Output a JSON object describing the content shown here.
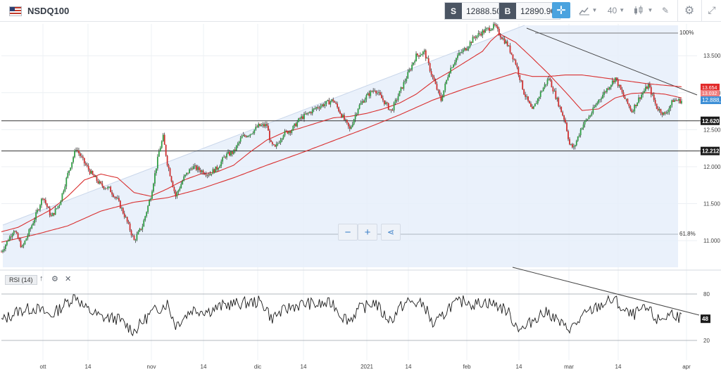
{
  "header": {
    "symbol": "NSDQ100",
    "sell_tag": "S",
    "sell_price": "12888.50",
    "buy_tag": "B",
    "buy_price": "12890.90",
    "interval_value": "40",
    "icons": [
      "flag-us-icon",
      "crosshair-icon",
      "line-chart-icon",
      "candles-icon",
      "draw-icon",
      "gear-icon",
      "expand-icon"
    ]
  },
  "controls": {
    "zoom_out": "−",
    "zoom_in": "+",
    "share_icon": "share-icon"
  },
  "rsi_panel": {
    "label": "RSI (14)",
    "current_value_tag": "48",
    "levels": [
      80,
      20
    ]
  },
  "chart_data": [
    {
      "type": "line",
      "subtype": "candlestick",
      "x_labels": [
        "ott",
        "14",
        "nov",
        "14",
        "dic",
        "14",
        "2021",
        "14",
        "feb",
        "14",
        "mar",
        "14",
        "apr"
      ],
      "y_ticks": [
        11.0,
        11.5,
        12.0,
        12.5,
        13.0,
        13.5
      ],
      "y_tick_labels": [
        "11.000",
        "11.500",
        "12.000",
        "12.500",
        "13.000",
        "13.500"
      ],
      "ylim": [
        10640,
        13930
      ],
      "price_key": [
        [
          0,
          10850
        ],
        [
          3,
          11150
        ],
        [
          5,
          10900
        ],
        [
          8,
          11300
        ],
        [
          10,
          11600
        ],
        [
          12,
          11320
        ],
        [
          14,
          11500
        ],
        [
          16,
          11900
        ],
        [
          18,
          12250
        ],
        [
          20,
          12050
        ],
        [
          22,
          11880
        ],
        [
          24,
          11750
        ],
        [
          26,
          11700
        ],
        [
          28,
          11550
        ],
        [
          30,
          11300
        ],
        [
          32,
          11000
        ],
        [
          34,
          11200
        ],
        [
          36,
          11600
        ],
        [
          38,
          12200
        ],
        [
          39,
          12400
        ],
        [
          40,
          12050
        ],
        [
          42,
          11600
        ],
        [
          44,
          11850
        ],
        [
          46,
          12000
        ],
        [
          48,
          11950
        ],
        [
          50,
          11900
        ],
        [
          52,
          11980
        ],
        [
          54,
          12150
        ],
        [
          56,
          12200
        ],
        [
          58,
          12400
        ],
        [
          60,
          12450
        ],
        [
          62,
          12550
        ],
        [
          64,
          12560
        ],
        [
          65,
          12300
        ],
        [
          66,
          12250
        ],
        [
          68,
          12450
        ],
        [
          70,
          12500
        ],
        [
          72,
          12650
        ],
        [
          74,
          12720
        ],
        [
          76,
          12800
        ],
        [
          78,
          12850
        ],
        [
          80,
          12900
        ],
        [
          82,
          12700
        ],
        [
          84,
          12500
        ],
        [
          86,
          12800
        ],
        [
          88,
          12950
        ],
        [
          90,
          13050
        ],
        [
          92,
          12900
        ],
        [
          94,
          12750
        ],
        [
          96,
          13000
        ],
        [
          98,
          13250
        ],
        [
          100,
          13500
        ],
        [
          102,
          13550
        ],
        [
          104,
          13200
        ],
        [
          106,
          12900
        ],
        [
          108,
          13300
        ],
        [
          110,
          13500
        ],
        [
          112,
          13600
        ],
        [
          114,
          13750
        ],
        [
          116,
          13820
        ],
        [
          118,
          13880
        ],
        [
          119,
          13900
        ],
        [
          120,
          13800
        ],
        [
          122,
          13650
        ],
        [
          124,
          13400
        ],
        [
          126,
          13000
        ],
        [
          128,
          12750
        ],
        [
          130,
          13000
        ],
        [
          132,
          13200
        ],
        [
          134,
          12900
        ],
        [
          136,
          12600
        ],
        [
          137,
          12300
        ],
        [
          138,
          12250
        ],
        [
          140,
          12550
        ],
        [
          142,
          12700
        ],
        [
          144,
          12900
        ],
        [
          146,
          13050
        ],
        [
          148,
          13200
        ],
        [
          150,
          12950
        ],
        [
          152,
          12750
        ],
        [
          154,
          12950
        ],
        [
          156,
          13100
        ],
        [
          158,
          12800
        ],
        [
          160,
          12700
        ],
        [
          162,
          12900
        ],
        [
          164,
          12889
        ]
      ],
      "moving_averages": [
        {
          "color": "#d93030",
          "values": [
            [
              0,
              11120
            ],
            [
              4,
              11180
            ],
            [
              8,
              11300
            ],
            [
              12,
              11420
            ],
            [
              16,
              11600
            ],
            [
              20,
              11820
            ],
            [
              24,
              11900
            ],
            [
              28,
              11850
            ],
            [
              32,
              11650
            ],
            [
              36,
              11600
            ],
            [
              40,
              11700
            ],
            [
              44,
              11820
            ],
            [
              48,
              11900
            ],
            [
              52,
              11930
            ],
            [
              56,
              12020
            ],
            [
              60,
              12200
            ],
            [
              64,
              12360
            ],
            [
              68,
              12460
            ],
            [
              72,
              12520
            ],
            [
              76,
              12590
            ],
            [
              80,
              12660
            ],
            [
              84,
              12680
            ],
            [
              88,
              12720
            ],
            [
              92,
              12780
            ],
            [
              96,
              12860
            ],
            [
              100,
              12980
            ],
            [
              104,
              13150
            ],
            [
              108,
              13280
            ],
            [
              112,
              13420
            ],
            [
              116,
              13560
            ],
            [
              118,
              13700
            ],
            [
              120,
              13800
            ],
            [
              124,
              13680
            ],
            [
              128,
              13470
            ],
            [
              132,
              13250
            ],
            [
              136,
              13010
            ],
            [
              140,
              12760
            ],
            [
              144,
              12780
            ],
            [
              148,
              12930
            ],
            [
              152,
              12990
            ],
            [
              156,
              13000
            ],
            [
              160,
              12980
            ],
            [
              164,
              12930
            ]
          ]
        },
        {
          "color": "#d93030",
          "values": [
            [
              0,
              10980
            ],
            [
              8,
              11080
            ],
            [
              16,
              11200
            ],
            [
              24,
              11400
            ],
            [
              32,
              11520
            ],
            [
              40,
              11580
            ],
            [
              48,
              11700
            ],
            [
              56,
              11850
            ],
            [
              64,
              12020
            ],
            [
              72,
              12180
            ],
            [
              80,
              12350
            ],
            [
              88,
              12520
            ],
            [
              96,
              12700
            ],
            [
              104,
              12900
            ],
            [
              112,
              13060
            ],
            [
              120,
              13200
            ],
            [
              124,
              13270
            ],
            [
              128,
              13220
            ],
            [
              132,
              13220
            ],
            [
              136,
              13240
            ],
            [
              140,
              13240
            ],
            [
              144,
              13210
            ],
            [
              148,
              13180
            ],
            [
              152,
              13150
            ],
            [
              156,
              13120
            ],
            [
              160,
              13100
            ],
            [
              164,
              13080
            ]
          ]
        }
      ],
      "horizontal_levels": [
        {
          "value": 12620,
          "label": "12.620"
        },
        {
          "value": 12212,
          "label": "12.212"
        }
      ],
      "current_price_label": "12.888,5",
      "red_price_tags": [
        "13.654",
        "13.032"
      ],
      "fibonacci_labels": [
        "100%",
        "61.8%"
      ],
      "grid": true
    },
    {
      "type": "line",
      "title": "RSI (14)",
      "ylim": [
        0,
        100
      ],
      "y_ticks": [
        80,
        20
      ],
      "values_key": [
        [
          0,
          45
        ],
        [
          4,
          58
        ],
        [
          8,
          62
        ],
        [
          12,
          52
        ],
        [
          16,
          70
        ],
        [
          18,
          78
        ],
        [
          20,
          62
        ],
        [
          24,
          50
        ],
        [
          28,
          48
        ],
        [
          32,
          32
        ],
        [
          36,
          55
        ],
        [
          40,
          68
        ],
        [
          42,
          40
        ],
        [
          46,
          60
        ],
        [
          50,
          58
        ],
        [
          54,
          66
        ],
        [
          58,
          68
        ],
        [
          62,
          70
        ],
        [
          64,
          62
        ],
        [
          65,
          48
        ],
        [
          66,
          52
        ],
        [
          70,
          64
        ],
        [
          74,
          68
        ],
        [
          76,
          66
        ],
        [
          80,
          68
        ],
        [
          82,
          52
        ],
        [
          84,
          46
        ],
        [
          86,
          60
        ],
        [
          88,
          64
        ],
        [
          90,
          70
        ],
        [
          92,
          54
        ],
        [
          94,
          46
        ],
        [
          96,
          62
        ],
        [
          98,
          70
        ],
        [
          100,
          68
        ],
        [
          102,
          66
        ],
        [
          104,
          40
        ],
        [
          106,
          48
        ],
        [
          108,
          64
        ],
        [
          110,
          68
        ],
        [
          112,
          72
        ],
        [
          114,
          66
        ],
        [
          116,
          70
        ],
        [
          118,
          68
        ],
        [
          120,
          64
        ],
        [
          122,
          58
        ],
        [
          124,
          40
        ],
        [
          126,
          34
        ],
        [
          128,
          46
        ],
        [
          130,
          54
        ],
        [
          132,
          56
        ],
        [
          134,
          46
        ],
        [
          136,
          36
        ],
        [
          138,
          38
        ],
        [
          140,
          50
        ],
        [
          142,
          58
        ],
        [
          144,
          64
        ],
        [
          146,
          70
        ],
        [
          148,
          72
        ],
        [
          150,
          58
        ],
        [
          152,
          52
        ],
        [
          154,
          58
        ],
        [
          156,
          60
        ],
        [
          158,
          46
        ],
        [
          160,
          50
        ],
        [
          162,
          56
        ],
        [
          164,
          48
        ]
      ]
    }
  ]
}
